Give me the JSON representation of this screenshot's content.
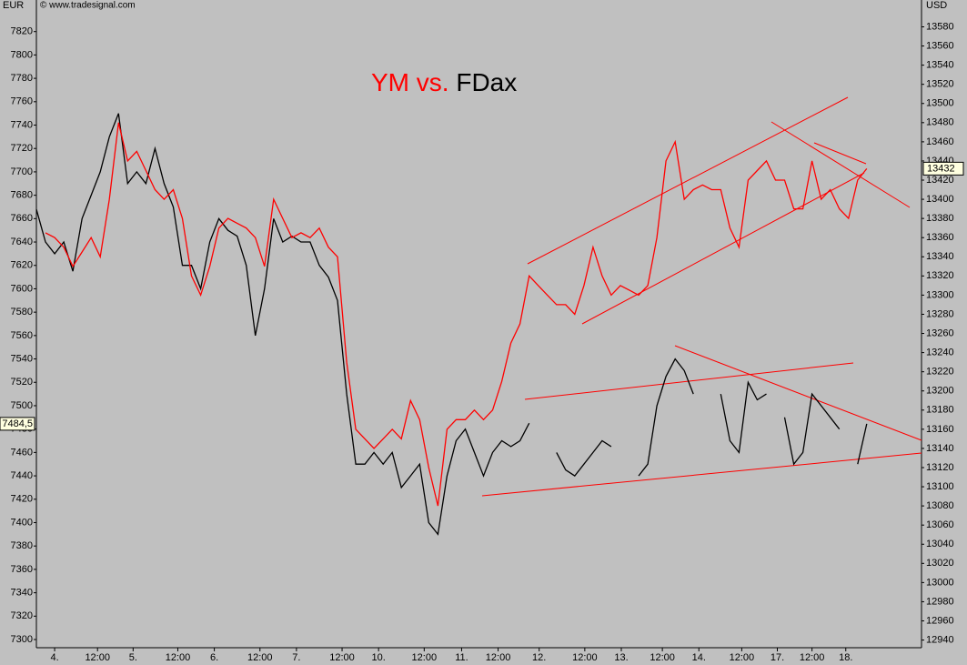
{
  "chart_data": {
    "type": "line",
    "source": "© www.tradesignal.com",
    "ylabel": "EUR",
    "y2label": "USD",
    "title_connector": "vs.",
    "xlim": [
      0,
      97
    ],
    "xticks": [
      {
        "value": 2.0,
        "label": "4."
      },
      {
        "value": 6.7,
        "label": "12:00"
      },
      {
        "value": 10.6,
        "label": "5."
      },
      {
        "value": 15.5,
        "label": "12:00"
      },
      {
        "value": 19.5,
        "label": "6."
      },
      {
        "value": 24.5,
        "label": "12:00"
      },
      {
        "value": 28.5,
        "label": "7."
      },
      {
        "value": 33.5,
        "label": "12:00"
      },
      {
        "value": 37.5,
        "label": "10."
      },
      {
        "value": 42.5,
        "label": "12:00"
      },
      {
        "value": 46.6,
        "label": "11."
      },
      {
        "value": 50.6,
        "label": "12:00"
      },
      {
        "value": 55.1,
        "label": "12."
      },
      {
        "value": 60.1,
        "label": "12:00"
      },
      {
        "value": 64.1,
        "label": "13."
      },
      {
        "value": 68.6,
        "label": "12:00"
      },
      {
        "value": 72.6,
        "label": "14."
      },
      {
        "value": 77.3,
        "label": "12:00"
      },
      {
        "value": 81.2,
        "label": "17."
      },
      {
        "value": 85.0,
        "label": "12:00"
      },
      {
        "value": 88.7,
        "label": "18."
      }
    ],
    "ylim": [
      7293,
      7847
    ],
    "yticks": [
      7300,
      7320,
      7340,
      7360,
      7380,
      7400,
      7420,
      7440,
      7460,
      7480,
      7500,
      7520,
      7540,
      7560,
      7580,
      7600,
      7620,
      7640,
      7660,
      7680,
      7700,
      7720,
      7740,
      7760,
      7780,
      7800,
      7820
    ],
    "y2lim": [
      12932,
      13608
    ],
    "y2ticks": [
      12940,
      12960,
      12980,
      13000,
      13020,
      13040,
      13060,
      13080,
      13100,
      13120,
      13140,
      13160,
      13180,
      13200,
      13220,
      13240,
      13260,
      13280,
      13300,
      13320,
      13340,
      13360,
      13380,
      13400,
      13420,
      13440,
      13460,
      13480,
      13500,
      13520,
      13540,
      13560,
      13580
    ],
    "series": [
      {
        "name": "YM",
        "color": "#ff0000",
        "axis": "y2",
        "values": [
          null,
          13365,
          13360,
          13350,
          13330,
          13345,
          13360,
          13340,
          13400,
          13480,
          13440,
          13450,
          13430,
          13410,
          13400,
          13410,
          13380,
          13320,
          13300,
          13330,
          13370,
          13380,
          13375,
          13370,
          13360,
          13330,
          13400,
          13380,
          13360,
          13365,
          13360,
          13370,
          13350,
          13340,
          13230,
          13160,
          13150,
          13140,
          13150,
          13160,
          13150,
          13190,
          13170,
          13120,
          13080,
          13160,
          13170,
          13170,
          13180,
          13170,
          13180,
          13210,
          13250,
          13270,
          13320,
          13310,
          13300,
          13290,
          13290,
          13280,
          13310,
          13350,
          13320,
          13300,
          13310,
          13305,
          13300,
          13310,
          13360,
          13440,
          13460,
          13400,
          13410,
          13415,
          13410,
          13410,
          13370,
          13350,
          13420,
          13430,
          13440,
          13420,
          13420,
          13390,
          13390,
          13440,
          13400,
          13410,
          13390,
          13380,
          13420,
          13432
        ]
      },
      {
        "name": "FDax",
        "color": "#000000",
        "last_value_label": "7484,5",
        "values": [
          7668,
          7640,
          7630,
          7640,
          7615,
          7660,
          7680,
          7700,
          7730,
          7750,
          7690,
          7700,
          7690,
          7720,
          7690,
          7670,
          7620,
          7620,
          7600,
          7640,
          7660,
          7650,
          7645,
          7620,
          7560,
          7600,
          7660,
          7640,
          7645,
          7640,
          7640,
          7620,
          7610,
          7590,
          7510,
          7450,
          7450,
          7460,
          7450,
          7460,
          7430,
          7440,
          7450,
          7400,
          7390,
          7440,
          7470,
          7480,
          7460,
          7440,
          7460,
          7470,
          7465,
          7470,
          7485,
          null,
          null,
          7460,
          7445,
          7440,
          7450,
          7460,
          7470,
          7465,
          null,
          null,
          7440,
          7450,
          7500,
          7525,
          7540,
          7530,
          7510,
          null,
          null,
          7510,
          7470,
          7460,
          7520,
          7505,
          7510,
          null,
          7490,
          7450,
          7460,
          7510,
          7500,
          7490,
          7480,
          null,
          7450,
          7484.5
        ]
      }
    ]
  }
}
